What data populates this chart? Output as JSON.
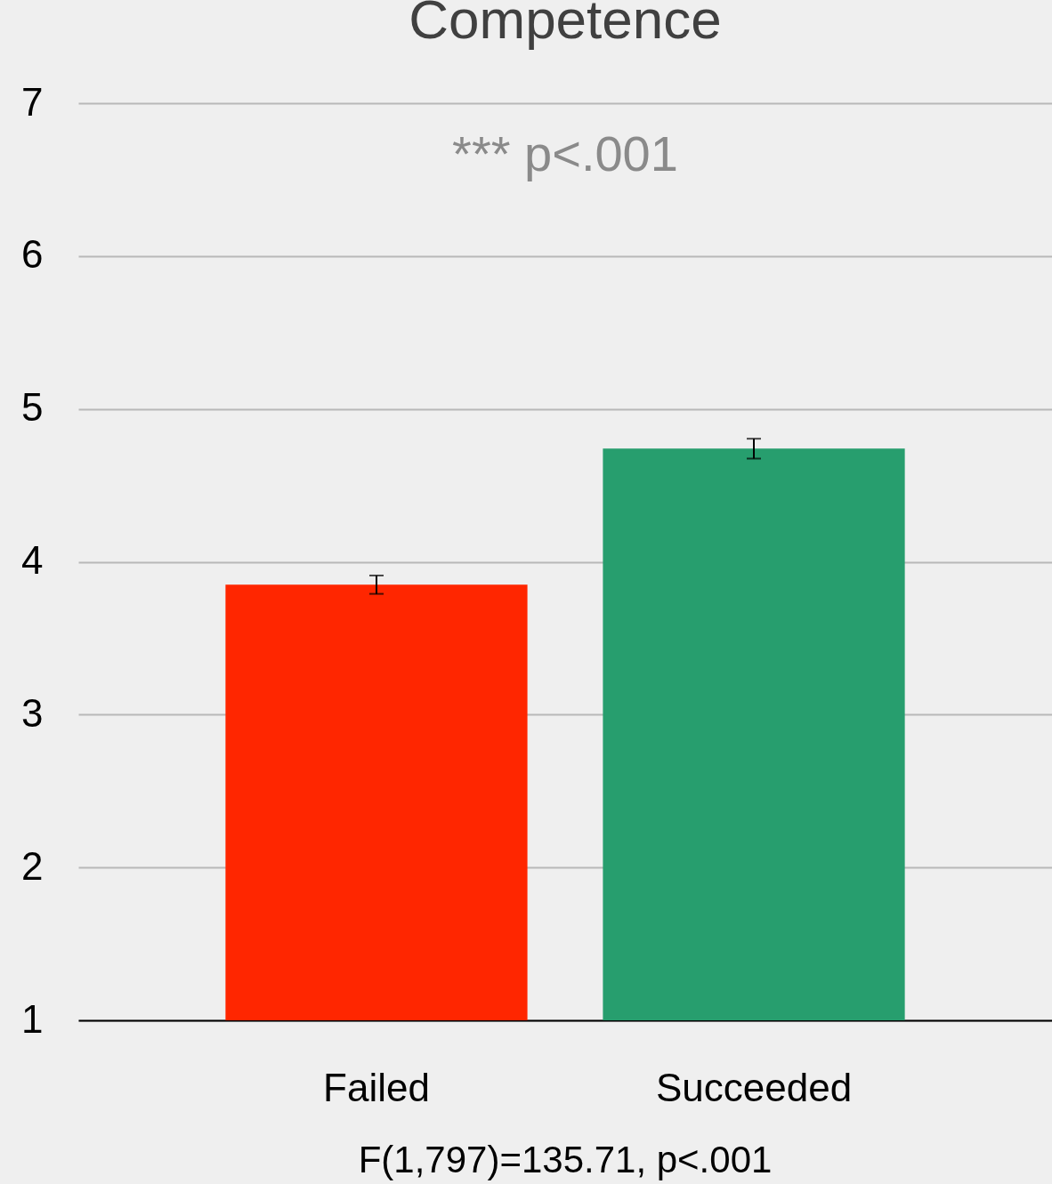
{
  "chart_data": {
    "type": "bar",
    "title": "Competence",
    "categories": [
      "Failed",
      "Succeeded"
    ],
    "values": [
      3.85,
      4.74
    ],
    "colors": [
      "#ff2600",
      "#279e6e"
    ],
    "errors": [
      0.06,
      0.065
    ],
    "ylim": [
      1,
      7
    ],
    "yticks": [
      1,
      2,
      3,
      4,
      5,
      6,
      7
    ],
    "grid": "y",
    "annotations": [
      "*** p<.001",
      "F(1,797)=135.71, p<.001"
    ]
  }
}
